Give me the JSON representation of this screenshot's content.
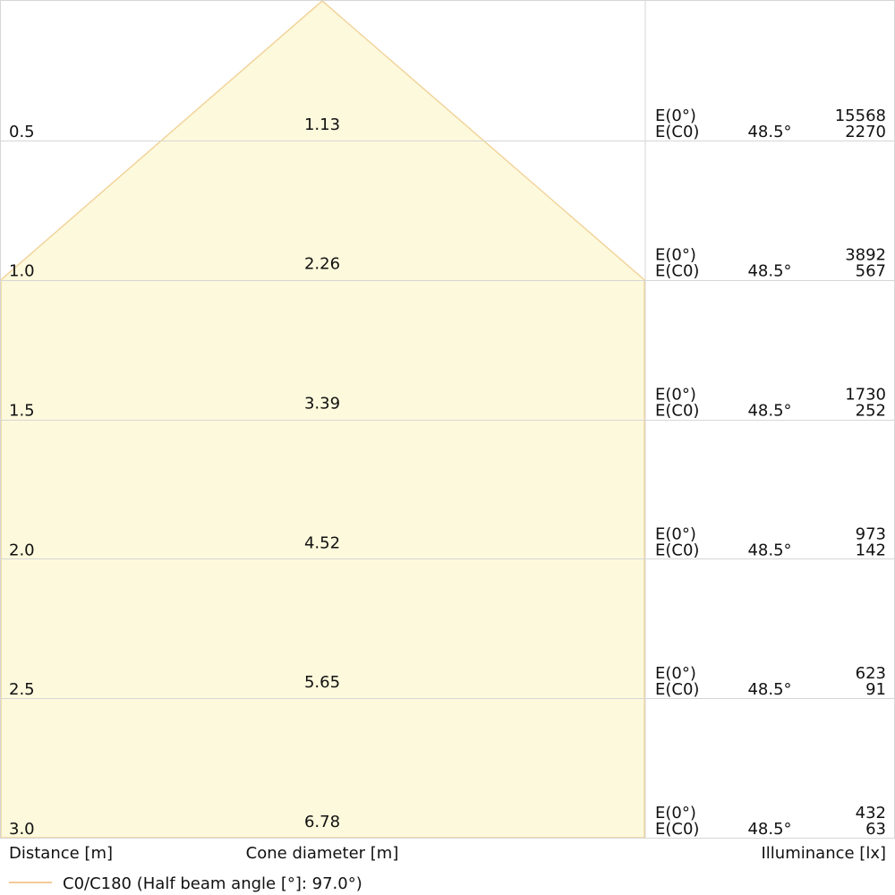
{
  "colors": {
    "cone_fill": "#fdf9dc",
    "cone_stroke": "#f2d49c",
    "grid": "#d6d6d6",
    "legend_line": "#f5c99a",
    "text": "#111111"
  },
  "labels": {
    "distance": "Distance [m]",
    "cone_diameter": "Cone diameter [m]",
    "illuminance": "Illuminance [lx]",
    "e_center": "E(0°)",
    "e_c0": "E(C0)"
  },
  "legend": {
    "text": "C0/C180 (Half beam angle [°]: 97.0°)"
  },
  "chart_data": {
    "type": "table",
    "half_beam_angle_deg": 97.0,
    "rows": [
      {
        "distance": "0.5",
        "diameter": "1.13",
        "angle": "48.5°",
        "e0": "15568",
        "ec0": "2270"
      },
      {
        "distance": "1.0",
        "diameter": "2.26",
        "angle": "48.5°",
        "e0": "3892",
        "ec0": "567"
      },
      {
        "distance": "1.5",
        "diameter": "3.39",
        "angle": "48.5°",
        "e0": "1730",
        "ec0": "252"
      },
      {
        "distance": "2.0",
        "diameter": "4.52",
        "angle": "48.5°",
        "e0": "973",
        "ec0": "142"
      },
      {
        "distance": "2.5",
        "diameter": "5.65",
        "angle": "48.5°",
        "e0": "623",
        "ec0": "91"
      },
      {
        "distance": "3.0",
        "diameter": "6.78",
        "angle": "48.5°",
        "e0": "432",
        "ec0": "63"
      }
    ]
  }
}
